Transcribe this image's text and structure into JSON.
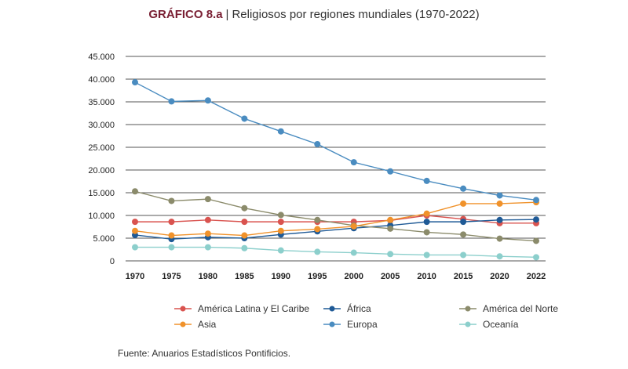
{
  "header": {
    "label": "GRÁFICO 8.a",
    "separator": "|",
    "title": "Religiosos por regiones mundiales (1970-2022)"
  },
  "source": "Fuente: Anuarios Estadísticos Pontificios.",
  "chart_data": {
    "type": "line",
    "title": "Religiosos por regiones mundiales (1970-2022)",
    "xlabel": "",
    "ylabel": "",
    "x": [
      "1970",
      "1975",
      "1980",
      "1985",
      "1990",
      "1995",
      "2000",
      "2005",
      "2010",
      "2015",
      "2020",
      "2022"
    ],
    "ylim": [
      0,
      45000
    ],
    "yticks": [
      0,
      5000,
      10000,
      15000,
      20000,
      25000,
      30000,
      35000,
      40000,
      45000
    ],
    "ytick_labels": [
      "0",
      "5.000",
      "10.000",
      "15.000",
      "20.000",
      "25.000",
      "30.000",
      "35.000",
      "40.000",
      "45.000"
    ],
    "grid": true,
    "legend_position": "bottom",
    "series": [
      {
        "name": "América Latina y El Caribe",
        "color": "#d9534f",
        "values": [
          8600,
          8600,
          9000,
          8600,
          8600,
          8600,
          8600,
          8900,
          10000,
          9200,
          8300,
          8300
        ]
      },
      {
        "name": "África",
        "color": "#1f5a96",
        "values": [
          5700,
          4800,
          5200,
          5000,
          5800,
          6500,
          7200,
          7800,
          8600,
          8600,
          9000,
          9100
        ]
      },
      {
        "name": "América del Norte",
        "color": "#8b8b6b",
        "values": [
          15300,
          13200,
          13600,
          11600,
          10100,
          9000,
          7800,
          7100,
          6300,
          5800,
          4900,
          4400
        ]
      },
      {
        "name": "Asia",
        "color": "#f0922b",
        "values": [
          6600,
          5600,
          6000,
          5600,
          6600,
          7000,
          7600,
          9000,
          10400,
          12600,
          12600,
          12900
        ]
      },
      {
        "name": "Europa",
        "color": "#4a8cc0",
        "values": [
          39300,
          35100,
          35300,
          31300,
          28500,
          25700,
          21700,
          19700,
          17600,
          15900,
          14400,
          13400
        ]
      },
      {
        "name": "Oceanía",
        "color": "#8ccfcc",
        "values": [
          3000,
          3000,
          3000,
          2800,
          2300,
          2000,
          1800,
          1500,
          1300,
          1300,
          1000,
          800
        ]
      }
    ]
  }
}
